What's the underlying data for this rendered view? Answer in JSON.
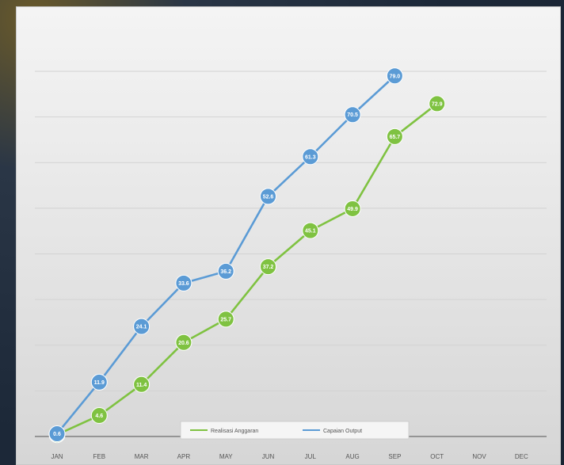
{
  "chart_data": {
    "type": "line",
    "title": "",
    "xlabel": "",
    "ylabel": "",
    "ylim": [
      0,
      80
    ],
    "grid": true,
    "legend_position": "bottom-right",
    "categories": [
      "JAN",
      "FEB",
      "MAR",
      "APR",
      "MAY",
      "JUN",
      "JUL",
      "AUG",
      "SEP",
      "OCT",
      "NOV",
      "DEC"
    ],
    "series": [
      {
        "name": "Realisasi Anggaran",
        "color": "#7fc241",
        "values": [
          0.4,
          4.6,
          11.4,
          20.6,
          25.7,
          37.2,
          45.1,
          49.9,
          65.7,
          72.9,
          null,
          null
        ],
        "labels": [
          "0.4",
          "4.6",
          "11.4",
          "20.6",
          "25.7",
          "37.2",
          "45.1",
          "49.9",
          "65.7",
          "72.9",
          "",
          ""
        ]
      },
      {
        "name": "Capaian Output",
        "color": "#5b9bd5",
        "values": [
          0.6,
          11.9,
          24.1,
          33.6,
          36.2,
          52.6,
          61.3,
          70.5,
          79.0,
          null,
          null,
          null
        ],
        "labels": [
          "0.6",
          "11.9",
          "24.1",
          "33.6",
          "36.2",
          "52.6",
          "61.3",
          "70.5",
          "79.0",
          "",
          "",
          ""
        ]
      }
    ]
  }
}
